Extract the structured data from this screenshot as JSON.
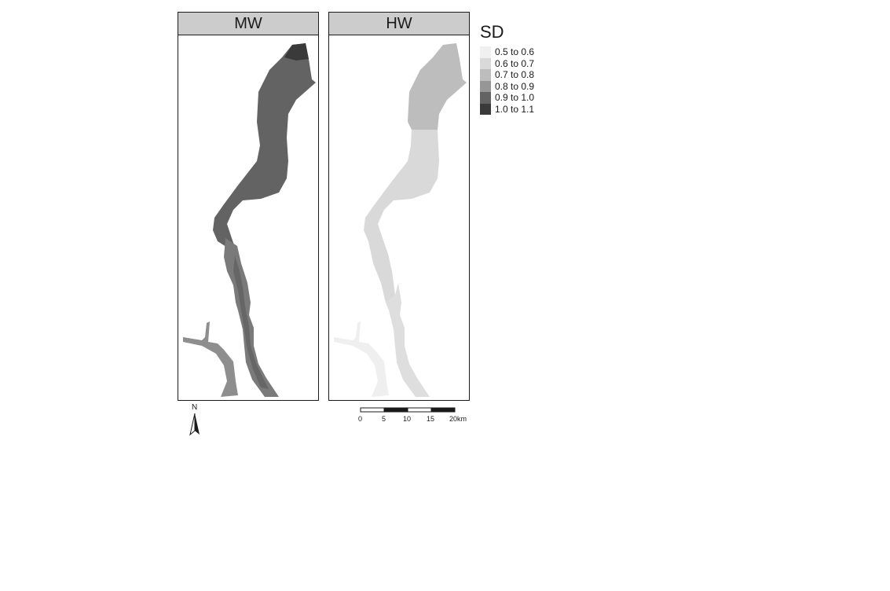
{
  "panels": [
    {
      "title": "MW"
    },
    {
      "title": "HW"
    }
  ],
  "legend": {
    "title": "SD",
    "items": [
      {
        "label": "0.5 to 0.6",
        "color": "#f0f0f0"
      },
      {
        "label": "0.6 to 0.7",
        "color": "#d9d9d9"
      },
      {
        "label": "0.7 to 0.8",
        "color": "#bdbdbd"
      },
      {
        "label": "0.8 to 0.9",
        "color": "#969696"
      },
      {
        "label": "0.9 to 1.0",
        "color": "#636363"
      },
      {
        "label": "1.0 to 1.1",
        "color": "#3a3a3a"
      }
    ]
  },
  "north_arrow": {
    "label": "N"
  },
  "scale_bar": {
    "ticks": [
      "0",
      "5",
      "10",
      "15",
      "20km"
    ]
  }
}
